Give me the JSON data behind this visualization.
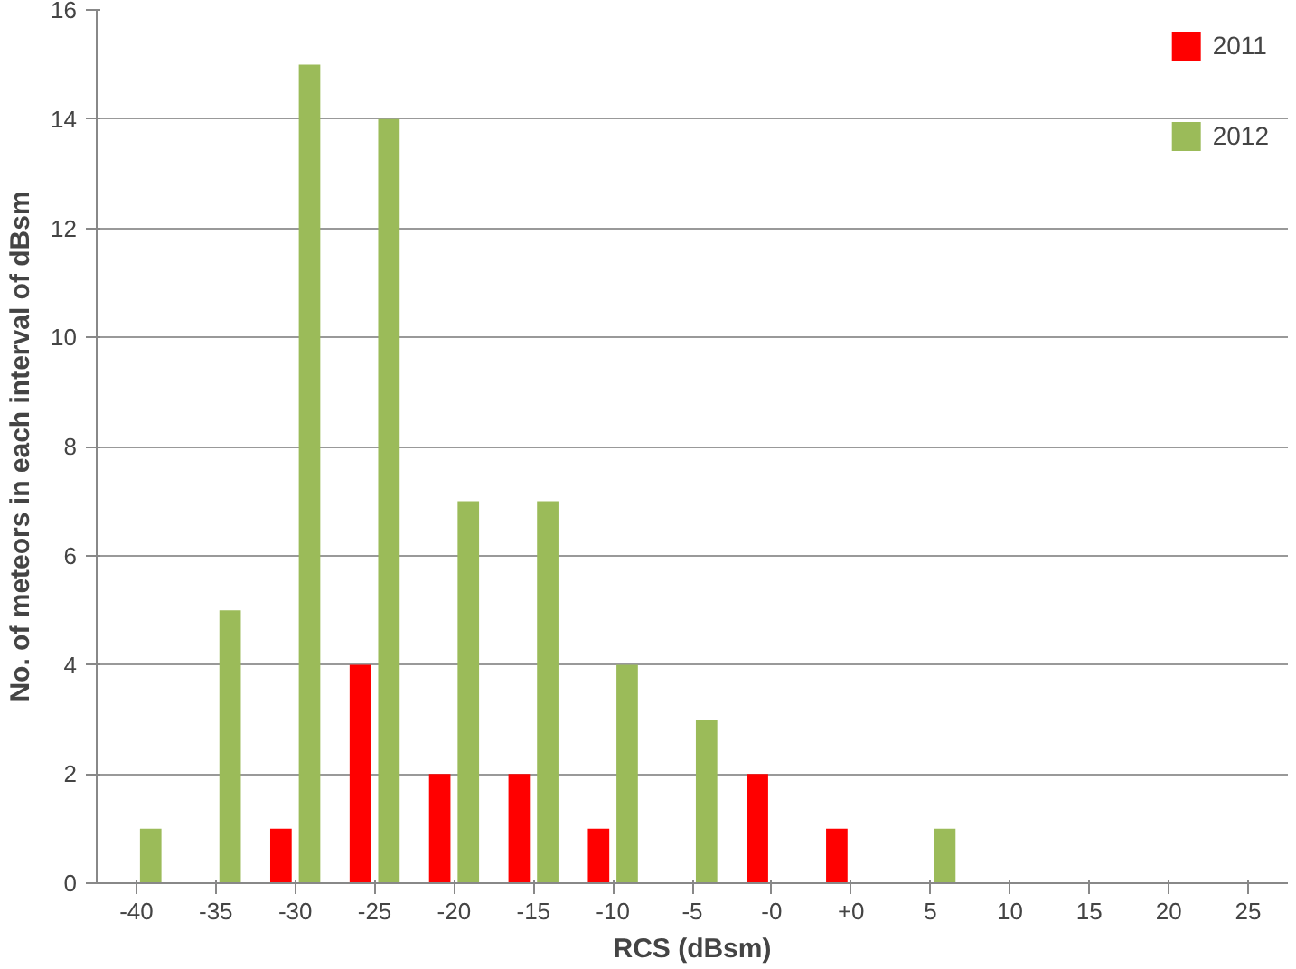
{
  "chart_data": {
    "type": "bar",
    "xlabel": "RCS (dBsm)",
    "ylabel": "No. of meteors in each interval of dBsm",
    "categories": [
      "-40",
      "-35",
      "-30",
      "-25",
      "-20",
      "-15",
      "-10",
      "-5",
      "-0",
      "+0",
      "5",
      "10",
      "15",
      "20",
      "25"
    ],
    "series": [
      {
        "name": "2011",
        "color": "#ff0000",
        "values": [
          0,
          0,
          1,
          4,
          2,
          2,
          1,
          0,
          2,
          1,
          0,
          0,
          0,
          0,
          0
        ]
      },
      {
        "name": "2012",
        "color": "#9bbb59",
        "values": [
          1,
          5,
          15,
          14,
          7,
          7,
          4,
          3,
          0,
          0,
          1,
          0,
          0,
          0,
          0
        ]
      }
    ],
    "ylim": [
      0,
      16
    ],
    "yticks": [
      0,
      2,
      4,
      6,
      8,
      10,
      12,
      14,
      16
    ],
    "grid": "y",
    "legend": "top right"
  }
}
